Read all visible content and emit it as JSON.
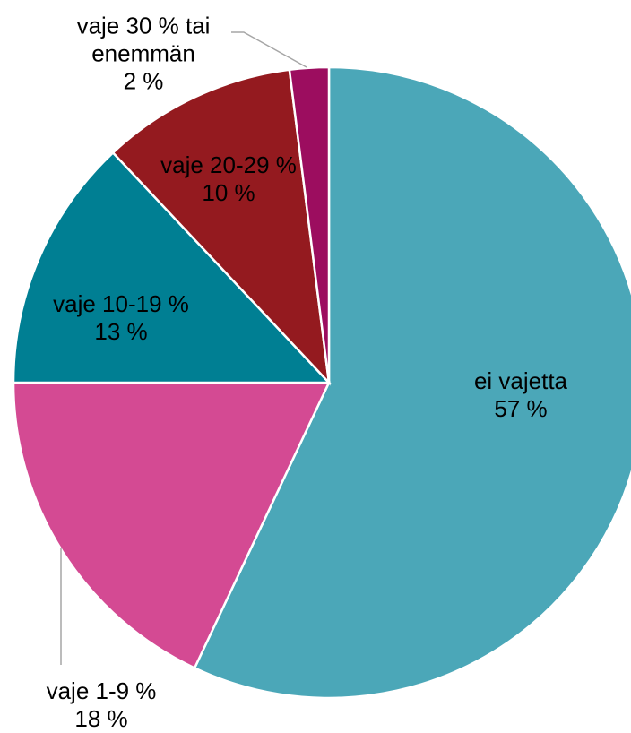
{
  "chart_data": {
    "type": "pie",
    "categories": [
      "ei vajetta",
      "vaje 1-9 %",
      "vaje 10-19 %",
      "vaje 20-29 %",
      "vaje 30 % tai enemmän"
    ],
    "values": [
      57,
      18,
      13,
      10,
      2
    ],
    "value_labels": [
      "57 %",
      "18 %",
      "13 %",
      "10 %",
      "2 %"
    ],
    "colors": [
      "#4ba7b8",
      "#d44a93",
      "#007f93",
      "#941a1f",
      "#9c0d5f"
    ]
  }
}
